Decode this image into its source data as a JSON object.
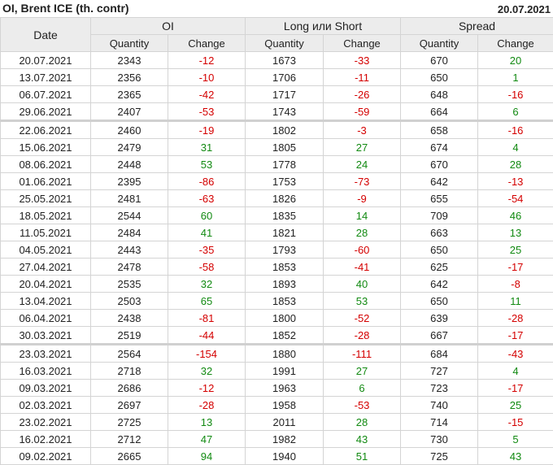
{
  "header": {
    "title": "OI, Brent ICE (th. contr)",
    "date": "20.07.2021"
  },
  "columns": {
    "date": "Date",
    "groups": [
      "OI",
      "Long или Short",
      "Spread"
    ],
    "quantity": "Quantity",
    "change": "Change"
  },
  "colors": {
    "negative": "#d40000",
    "positive": "#128a12"
  },
  "rows": [
    [
      "20.07.2021",
      "2343",
      "-12",
      "1673",
      "-33",
      "670",
      "20"
    ],
    [
      "13.07.2021",
      "2356",
      "-10",
      "1706",
      "-11",
      "650",
      "1"
    ],
    [
      "06.07.2021",
      "2365",
      "-42",
      "1717",
      "-26",
      "648",
      "-16"
    ],
    [
      "29.06.2021",
      "2407",
      "-53",
      "1743",
      "-59",
      "664",
      "6"
    ],
    [
      "22.06.2021",
      "2460",
      "-19",
      "1802",
      "-3",
      "658",
      "-16"
    ],
    [
      "15.06.2021",
      "2479",
      "31",
      "1805",
      "27",
      "674",
      "4"
    ],
    [
      "08.06.2021",
      "2448",
      "53",
      "1778",
      "24",
      "670",
      "28"
    ],
    [
      "01.06.2021",
      "2395",
      "-86",
      "1753",
      "-73",
      "642",
      "-13"
    ],
    [
      "25.05.2021",
      "2481",
      "-63",
      "1826",
      "-9",
      "655",
      "-54"
    ],
    [
      "18.05.2021",
      "2544",
      "60",
      "1835",
      "14",
      "709",
      "46"
    ],
    [
      "11.05.2021",
      "2484",
      "41",
      "1821",
      "28",
      "663",
      "13"
    ],
    [
      "04.05.2021",
      "2443",
      "-35",
      "1793",
      "-60",
      "650",
      "25"
    ],
    [
      "27.04.2021",
      "2478",
      "-58",
      "1853",
      "-41",
      "625",
      "-17"
    ],
    [
      "20.04.2021",
      "2535",
      "32",
      "1893",
      "40",
      "642",
      "-8"
    ],
    [
      "13.04.2021",
      "2503",
      "65",
      "1853",
      "53",
      "650",
      "11"
    ],
    [
      "06.04.2021",
      "2438",
      "-81",
      "1800",
      "-52",
      "639",
      "-28"
    ],
    [
      "30.03.2021",
      "2519",
      "-44",
      "1852",
      "-28",
      "667",
      "-17"
    ],
    [
      "23.03.2021",
      "2564",
      "-154",
      "1880",
      "-111",
      "684",
      "-43"
    ],
    [
      "16.03.2021",
      "2718",
      "32",
      "1991",
      "27",
      "727",
      "4"
    ],
    [
      "09.03.2021",
      "2686",
      "-12",
      "1963",
      "6",
      "723",
      "-17"
    ],
    [
      "02.03.2021",
      "2697",
      "-28",
      "1958",
      "-53",
      "740",
      "25"
    ],
    [
      "23.02.2021",
      "2725",
      "13",
      "2011",
      "28",
      "714",
      "-15"
    ],
    [
      "16.02.2021",
      "2712",
      "47",
      "1982",
      "43",
      "730",
      "5"
    ],
    [
      "09.02.2021",
      "2665",
      "94",
      "1940",
      "51",
      "725",
      "43"
    ]
  ]
}
